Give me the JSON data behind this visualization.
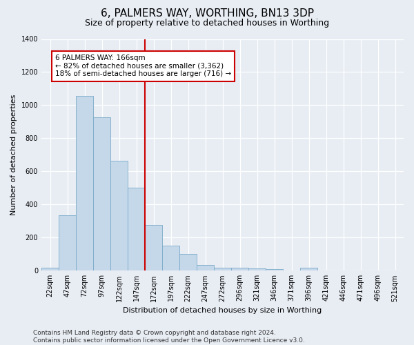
{
  "title": "6, PALMERS WAY, WORTHING, BN13 3DP",
  "subtitle": "Size of property relative to detached houses in Worthing",
  "xlabel": "Distribution of detached houses by size in Worthing",
  "ylabel": "Number of detached properties",
  "footer_line1": "Contains HM Land Registry data © Crown copyright and database right 2024.",
  "footer_line2": "Contains public sector information licensed under the Open Government Licence v3.0.",
  "categories": [
    "22sqm",
    "47sqm",
    "72sqm",
    "97sqm",
    "122sqm",
    "147sqm",
    "172sqm",
    "197sqm",
    "222sqm",
    "247sqm",
    "272sqm",
    "296sqm",
    "321sqm",
    "346sqm",
    "371sqm",
    "396sqm",
    "421sqm",
    "446sqm",
    "471sqm",
    "496sqm",
    "521sqm"
  ],
  "values": [
    20,
    335,
    1055,
    925,
    665,
    500,
    275,
    150,
    100,
    33,
    20,
    18,
    14,
    10,
    0,
    18,
    0,
    0,
    0,
    0,
    0
  ],
  "bar_color": "#c5d8ea",
  "bar_edge_color": "#7aaac8",
  "vline_idx": 6,
  "vline_color": "#cc0000",
  "annotation_line1": "6 PALMERS WAY: 166sqm",
  "annotation_line2": "← 82% of detached houses are smaller (3,362)",
  "annotation_line3": "18% of semi-detached houses are larger (716) →",
  "annotation_box_facecolor": "#ffffff",
  "annotation_box_edgecolor": "#cc0000",
  "ylim": [
    0,
    1400
  ],
  "yticks": [
    0,
    200,
    400,
    600,
    800,
    1000,
    1200,
    1400
  ],
  "bg_color": "#e8edf4",
  "grid_color": "#ffffff",
  "title_fontsize": 11,
  "subtitle_fontsize": 9,
  "axis_label_fontsize": 8,
  "tick_fontsize": 7,
  "annot_fontsize": 7.5,
  "footer_fontsize": 6.5
}
